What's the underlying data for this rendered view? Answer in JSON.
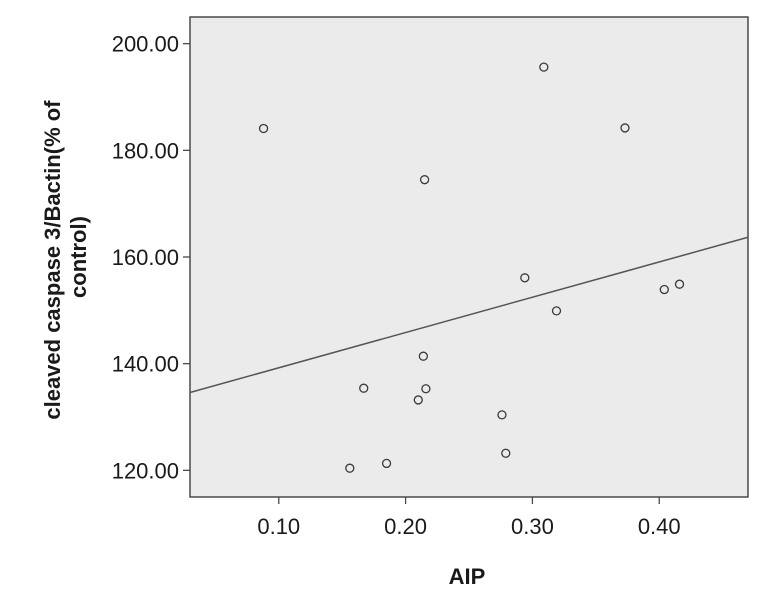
{
  "chart_data": {
    "type": "scatter",
    "title": "",
    "xlabel": "AIP",
    "ylabel_lines": [
      "cleaved caspase 3/Bactin(% of",
      "control)"
    ],
    "xlim": [
      0.03,
      0.47
    ],
    "ylim": [
      115,
      205
    ],
    "x_ticks": [
      0.1,
      0.2,
      0.3,
      0.4
    ],
    "x_tick_labels": [
      "0.10",
      "0.20",
      "0.30",
      "0.40"
    ],
    "y_ticks": [
      120,
      140,
      160,
      180,
      200
    ],
    "y_tick_labels": [
      "120.00",
      "140.00",
      "160.00",
      "180.00",
      "200.00"
    ],
    "grid": false,
    "points": [
      {
        "x": 0.088,
        "y": 184.1
      },
      {
        "x": 0.156,
        "y": 120.4
      },
      {
        "x": 0.167,
        "y": 135.4
      },
      {
        "x": 0.185,
        "y": 121.3
      },
      {
        "x": 0.21,
        "y": 133.2
      },
      {
        "x": 0.214,
        "y": 141.4
      },
      {
        "x": 0.215,
        "y": 174.5
      },
      {
        "x": 0.216,
        "y": 135.3
      },
      {
        "x": 0.276,
        "y": 130.4
      },
      {
        "x": 0.279,
        "y": 123.2
      },
      {
        "x": 0.294,
        "y": 156.1
      },
      {
        "x": 0.309,
        "y": 195.6
      },
      {
        "x": 0.319,
        "y": 149.9
      },
      {
        "x": 0.373,
        "y": 184.2
      },
      {
        "x": 0.404,
        "y": 153.9
      },
      {
        "x": 0.416,
        "y": 154.9
      }
    ],
    "fit_line": {
      "x": [
        0.03,
        0.47
      ],
      "y": [
        134.6,
        163.7
      ]
    },
    "colors": {
      "plot_background": "#ebebeb",
      "frame": "#4a4a4a",
      "marker": "#3a3a3a",
      "fit_line": "#555555"
    }
  }
}
